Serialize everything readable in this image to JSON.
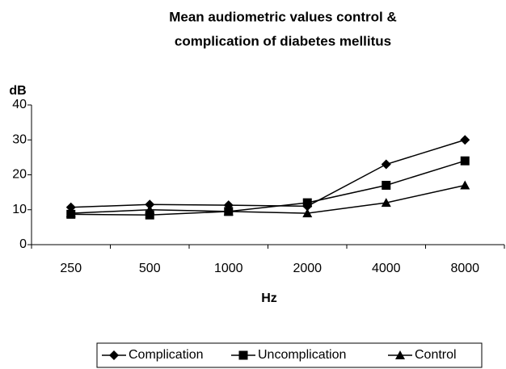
{
  "chart_data": {
    "type": "line",
    "title": [
      "Mean audiometric values control &",
      "complication of diabetes mellitus"
    ],
    "y_label": "dB",
    "x_label": "Hz",
    "categories": [
      "250",
      "500",
      "1000",
      "2000",
      "4000",
      "8000"
    ],
    "series": [
      {
        "name": "Complication",
        "color": "#000000",
        "marker": "diamond",
        "values": [
          10.7,
          11.5,
          11.3,
          11,
          23,
          30
        ]
      },
      {
        "name": "Uncomplication",
        "color": "#000000",
        "marker": "square",
        "values": [
          8.7,
          8.5,
          9.5,
          12,
          17,
          24
        ]
      },
      {
        "name": "Control",
        "color": "#000000",
        "marker": "triangle",
        "values": [
          9,
          10,
          9.5,
          9,
          12,
          17
        ]
      }
    ],
    "ylim": [
      0,
      40
    ],
    "yticks": [
      0,
      10,
      20,
      30,
      40
    ],
    "grid": false,
    "legend": "bottom"
  }
}
